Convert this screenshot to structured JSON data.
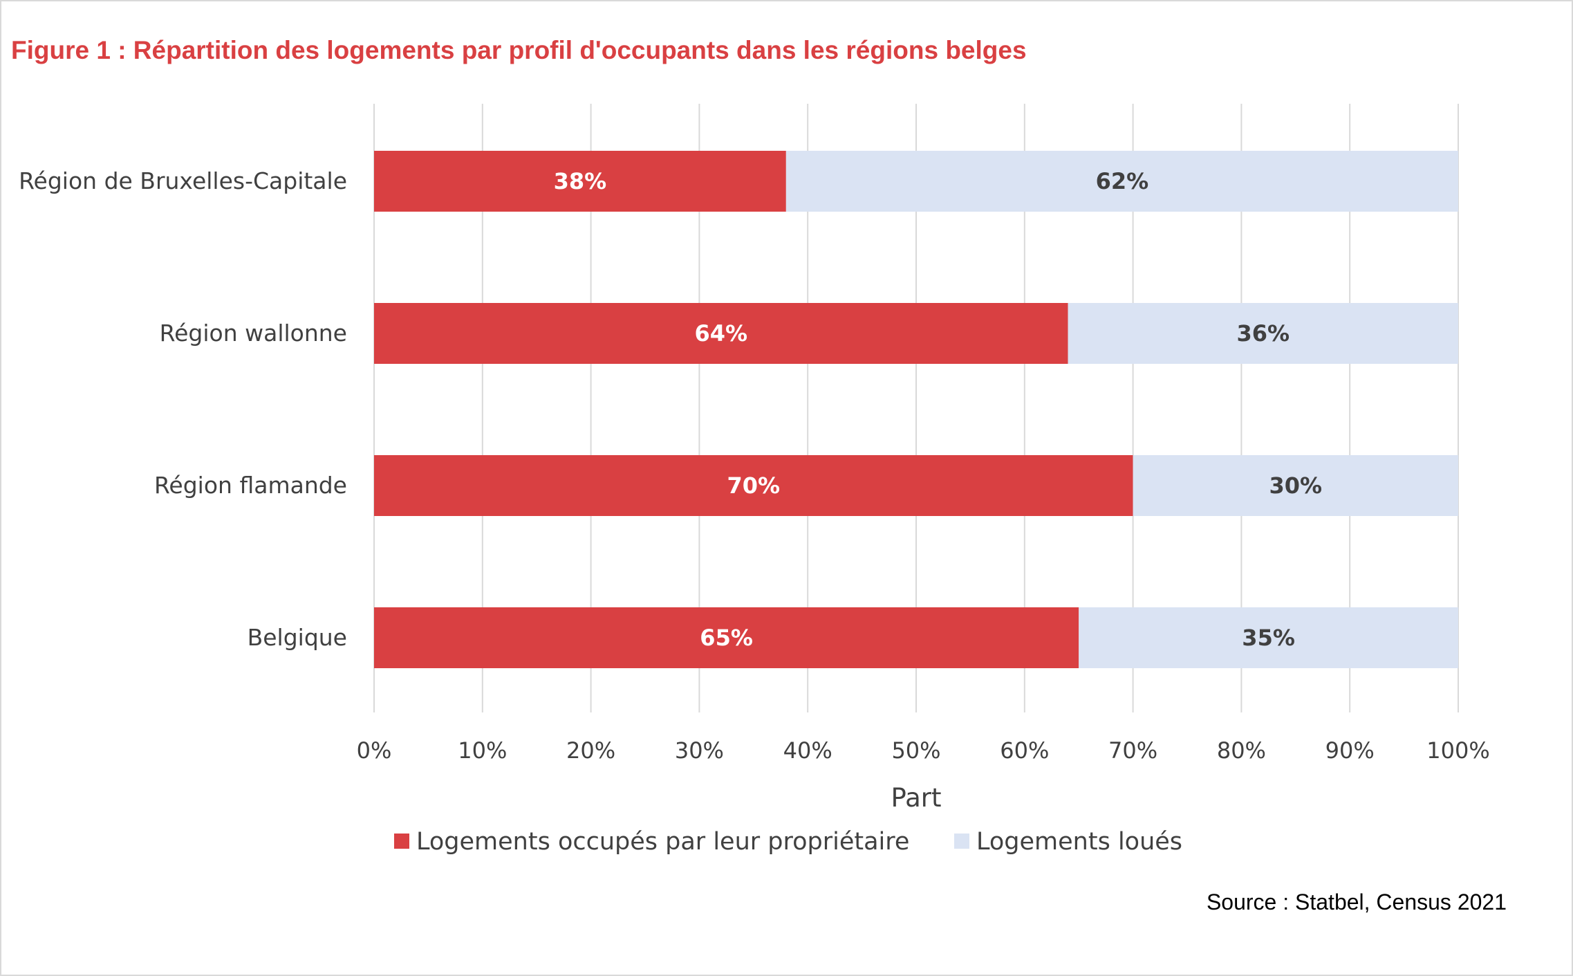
{
  "chart_data": {
    "type": "bar",
    "orientation": "horizontal",
    "stacked": true,
    "title": "Figure 1 : Répartition des logements par profil d'occupants dans les régions belges",
    "categories": [
      "Région de Bruxelles-Capitale",
      "Région wallonne",
      "Région flamande",
      "Belgique"
    ],
    "series": [
      {
        "name": "Logements occupés par leur propriétaire",
        "color": "#d94042",
        "label_color": "#ffffff",
        "values": [
          38,
          64,
          70,
          65
        ],
        "labels": [
          "38%",
          "64%",
          "70%",
          "65%"
        ]
      },
      {
        "name": "Logements loués",
        "color": "#dae3f3",
        "label_color": "#404040",
        "values": [
          62,
          36,
          30,
          35
        ],
        "labels": [
          "62%",
          "36%",
          "30%",
          "35%"
        ]
      }
    ],
    "xlim": [
      0,
      100
    ],
    "xticks": [
      0,
      10,
      20,
      30,
      40,
      50,
      60,
      70,
      80,
      90,
      100
    ],
    "xtick_labels": [
      "0%",
      "10%",
      "20%",
      "30%",
      "40%",
      "50%",
      "60%",
      "70%",
      "80%",
      "90%",
      "100%"
    ],
    "xlabel": "Part",
    "ylabel": "",
    "grid": true,
    "legend_position": "bottom",
    "source": "Source : Statbel, Census 2021"
  }
}
